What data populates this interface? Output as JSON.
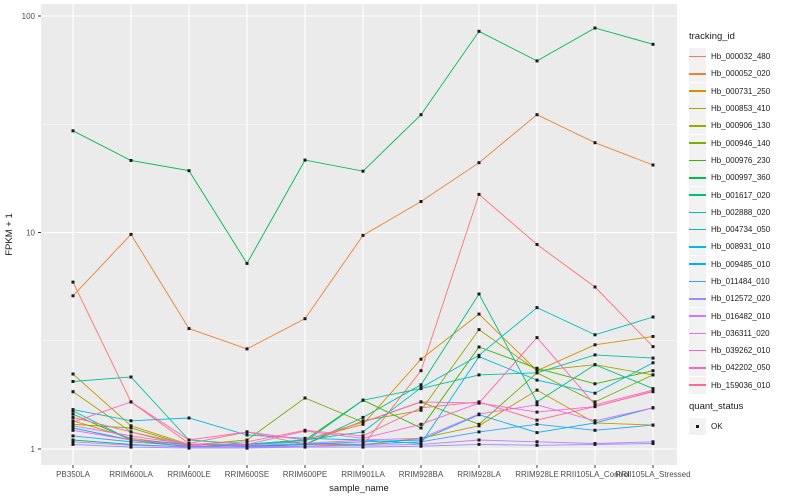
{
  "axes": {
    "x": {
      "label": "sample_name"
    },
    "y": {
      "label": "FPKM + 1",
      "ticks": [
        {
          "label": "1",
          "value": 1
        },
        {
          "label": "10",
          "value": 10
        },
        {
          "label": "100",
          "value": 100
        }
      ]
    }
  },
  "legend": {
    "tracking_title": "tracking_id",
    "quant_title": "quant_status",
    "quant_items": [
      {
        "label": "OK",
        "marker": "filled-black-square"
      }
    ]
  },
  "style": {
    "panel_bg": "#EBEBEB",
    "grid_color": "#FFFFFF",
    "point_color": "#1A1A1A",
    "tick_label_color": "#4D4D4D",
    "axis_title_color": "#1A1A1A",
    "tick_mark_color": "#333333"
  },
  "chart_data": {
    "type": "line",
    "title": "",
    "xlabel": "sample_name",
    "ylabel": "FPKM + 1",
    "y_scale": "log10",
    "ylim": [
      1,
      100
    ],
    "grid": true,
    "legend_position": "right",
    "point_marker": "black filled square (quant_status = OK) at every point",
    "categories": [
      "PB350LA",
      "RRIM600LA",
      "RRIM600LE",
      "RRIM600SE",
      "RRIM600PE",
      "RRIM901LA",
      "RRIM928BA",
      "RRIM928LA",
      "RRIM928LE",
      "RRII105LA_Control",
      "RRII105LA_Stressed"
    ],
    "series": [
      {
        "name": "Hb_000032_480",
        "color": "#F8766D",
        "values": [
          5.9,
          1.65,
          1.06,
          1.2,
          1.05,
          1.04,
          2.3,
          15,
          8.8,
          5.6,
          2.97
        ]
      },
      {
        "name": "Hb_000052_020",
        "color": "#EA8331",
        "values": [
          5.1,
          9.8,
          3.6,
          2.9,
          4.0,
          9.7,
          13.9,
          21,
          35,
          26,
          20.5
        ]
      },
      {
        "name": "Hb_000731_250",
        "color": "#D89000",
        "values": [
          1.35,
          1.12,
          1.04,
          1.05,
          1.1,
          1.3,
          2.6,
          4.2,
          2.3,
          3.03,
          3.31
        ]
      },
      {
        "name": "Hb_000853_410",
        "color": "#C09B00",
        "values": [
          2.22,
          1.28,
          1.05,
          1.03,
          1.06,
          1.05,
          1.12,
          1.28,
          1.87,
          1.32,
          1.29
        ]
      },
      {
        "name": "Hb_000906_130",
        "color": "#A3A500",
        "values": [
          1.84,
          1.2,
          1.03,
          1.02,
          1.05,
          1.35,
          1.51,
          3.56,
          2.3,
          2.45,
          2.2
        ]
      },
      {
        "name": "Hb_000946_140",
        "color": "#7CAE00",
        "values": [
          1.3,
          1.25,
          1.04,
          1.1,
          1.72,
          1.33,
          1.65,
          1.3,
          2.25,
          1.65,
          2.2
        ]
      },
      {
        "name": "Hb_000976_230",
        "color": "#39B600",
        "values": [
          1.45,
          1.1,
          1.02,
          1.05,
          1.1,
          1.68,
          1.25,
          2.96,
          2.36,
          2.0,
          2.3
        ]
      },
      {
        "name": "Hb_000997_360",
        "color": "#00BB4E",
        "values": [
          29.5,
          21.5,
          19.3,
          7.2,
          21.6,
          19.2,
          35,
          85,
          62,
          88,
          74
        ]
      },
      {
        "name": "Hb_001617_020",
        "color": "#00BF7D",
        "values": [
          1.1,
          1.05,
          1.02,
          1.02,
          1.05,
          1.4,
          1.98,
          5.2,
          1.65,
          2.45,
          1.9
        ]
      },
      {
        "name": "Hb_002888_020",
        "color": "#00C1A3",
        "values": [
          2.05,
          2.15,
          1.1,
          1.05,
          1.08,
          1.68,
          1.9,
          2.2,
          2.25,
          2.72,
          2.63
        ]
      },
      {
        "name": "Hb_004734_050",
        "color": "#00BFC4",
        "values": [
          1.5,
          1.1,
          1.05,
          1.05,
          1.1,
          1.2,
          1.92,
          2.71,
          4.5,
          3.37,
          4.07
        ]
      },
      {
        "name": "Hb_008931_010",
        "color": "#00BAE0",
        "values": [
          1.52,
          1.35,
          1.39,
          1.16,
          1.12,
          1.1,
          1.06,
          2.67,
          2.08,
          1.81,
          2.5
        ]
      },
      {
        "name": "Hb_009485_010",
        "color": "#00B0F6",
        "values": [
          1.25,
          1.1,
          1.05,
          1.03,
          1.05,
          1.08,
          1.1,
          1.44,
          1.19,
          1.32,
          1.55
        ]
      },
      {
        "name": "Hb_011484_010",
        "color": "#35A2FF",
        "values": [
          1.15,
          1.08,
          1.03,
          1.02,
          1.03,
          1.05,
          1.08,
          1.2,
          1.3,
          1.22,
          1.29
        ]
      },
      {
        "name": "Hb_012572_020",
        "color": "#9590FF",
        "values": [
          1.05,
          1.02,
          1.01,
          1.01,
          1.02,
          1.02,
          1.03,
          1.05,
          1.04,
          1.05,
          1.06
        ]
      },
      {
        "name": "Hb_016482_010",
        "color": "#C77CFF",
        "values": [
          1.08,
          1.04,
          1.02,
          1.02,
          1.03,
          1.04,
          1.05,
          1.1,
          1.08,
          1.06,
          1.08
        ]
      },
      {
        "name": "Hb_036311_020",
        "color": "#E76BF3",
        "values": [
          1.28,
          1.15,
          1.05,
          1.04,
          1.06,
          1.1,
          1.12,
          1.45,
          1.6,
          1.35,
          1.55
        ]
      },
      {
        "name": "Hb_039262_010",
        "color": "#FA62DB",
        "values": [
          1.22,
          1.1,
          1.04,
          1.05,
          1.21,
          1.12,
          1.3,
          1.63,
          1.48,
          1.57,
          1.84
        ]
      },
      {
        "name": "Hb_042202_050",
        "color": "#FF62BC",
        "values": [
          1.33,
          1.65,
          1.1,
          1.2,
          1.1,
          1.33,
          1.65,
          1.63,
          3.27,
          1.6,
          1.87
        ]
      },
      {
        "name": "Hb_159036_010",
        "color": "#FF6A98",
        "values": [
          1.4,
          1.2,
          1.05,
          1.08,
          1.22,
          1.15,
          1.55,
          1.65,
          1.36,
          1.57,
          1.85
        ]
      }
    ]
  }
}
